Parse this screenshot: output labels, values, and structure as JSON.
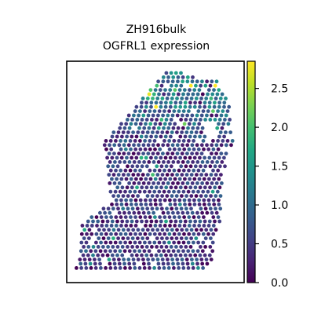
{
  "chart_data": {
    "type": "scatter",
    "title_line1": "ZH916bulk",
    "title_line2": "OGFRL1 expression",
    "xlabel": "",
    "ylabel": "",
    "colorbar": {
      "colormap": "viridis",
      "range": [
        0.0,
        2.85
      ],
      "ticks": [
        0.0,
        0.5,
        1.0,
        1.5,
        2.0,
        2.5
      ],
      "tick_labels": [
        "0.0",
        "0.5",
        "1.0",
        "1.5",
        "2.0",
        "2.5"
      ]
    },
    "axes": {
      "x_ticks": "none",
      "y_ticks": "none",
      "frame": true
    },
    "description_of_points": "hexagonal spatial spots forming a tissue section; values mostly 0.0-1.0 with higher values (1.5-2.8) concentrated in the upper region"
  }
}
